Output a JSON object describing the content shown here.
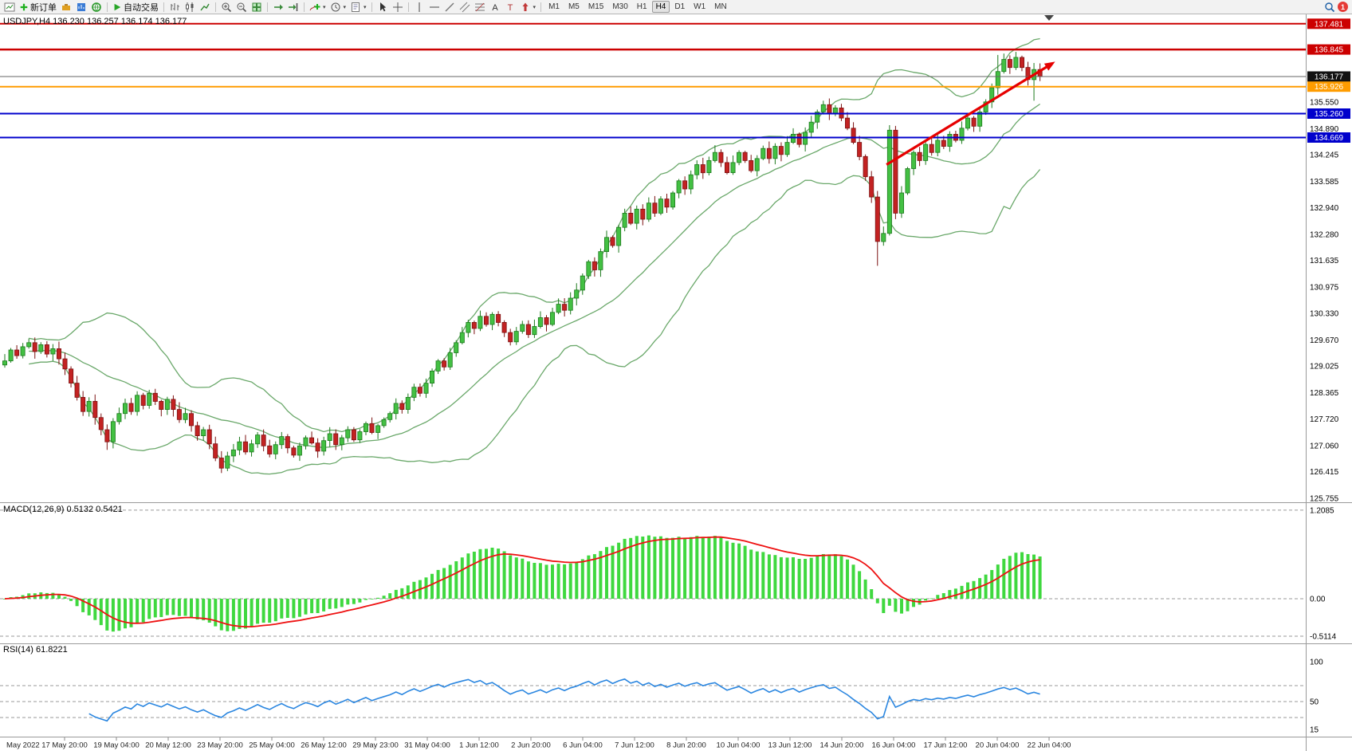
{
  "toolbar": {
    "new_order_label": "新订单",
    "autotrading_label": "自动交易",
    "timeframes": [
      "M1",
      "M5",
      "M15",
      "M30",
      "H1",
      "H4",
      "D1",
      "W1",
      "MN"
    ],
    "active_timeframe": "H4",
    "notification_count": "1"
  },
  "chart_data": {
    "type": "candlestick",
    "symbol": "USDJPY",
    "period": "H4",
    "symbol_header": "USDJPY,H4 136.230 136.257 136.174 136.177",
    "quote": {
      "open": "136.230",
      "high": "136.257",
      "low": "136.174",
      "close": "136.177"
    },
    "price_axis_labels": [
      "135.550",
      "134.890",
      "134.245",
      "133.585",
      "132.940",
      "132.280",
      "131.635",
      "130.975",
      "130.330",
      "129.670",
      "129.025",
      "128.365",
      "127.720",
      "127.060",
      "126.415",
      "125.755"
    ],
    "time_axis_labels": [
      "May 2022",
      "17 May 20:00",
      "19 May 04:00",
      "20 May 12:00",
      "23 May 20:00",
      "25 May 04:00",
      "26 May 12:00",
      "29 May 23:00",
      "31 May 04:00",
      "1 Jun 12:00",
      "2 Jun 20:00",
      "6 Jun 04:00",
      "7 Jun 12:00",
      "8 Jun 20:00",
      "10 Jun 04:00",
      "13 Jun 12:00",
      "14 Jun 20:00",
      "16 Jun 04:00",
      "17 Jun 12:00",
      "20 Jun 04:00",
      "22 Jun 04:00"
    ],
    "candles": {
      "first_open": 129.05,
      "closes": [
        129.15,
        129.42,
        129.28,
        129.5,
        129.6,
        129.38,
        129.55,
        129.32,
        129.45,
        129.2,
        128.95,
        128.6,
        128.25,
        127.9,
        128.15,
        127.75,
        127.45,
        127.15,
        127.65,
        127.85,
        128.1,
        127.9,
        128.3,
        128.05,
        128.35,
        128.15,
        127.95,
        128.2,
        127.95,
        127.7,
        127.85,
        127.55,
        127.3,
        127.45,
        127.1,
        126.75,
        126.5,
        126.8,
        126.95,
        127.15,
        126.9,
        127.1,
        127.32,
        127.05,
        126.85,
        127.08,
        127.28,
        127.0,
        126.82,
        127.05,
        127.25,
        127.12,
        126.92,
        127.18,
        127.35,
        127.08,
        127.25,
        127.45,
        127.2,
        127.4,
        127.6,
        127.38,
        127.55,
        127.7,
        127.85,
        128.1,
        127.95,
        128.25,
        128.5,
        128.35,
        128.6,
        128.9,
        129.15,
        129.0,
        129.35,
        129.6,
        129.85,
        130.1,
        129.95,
        130.25,
        130.05,
        130.3,
        130.1,
        129.85,
        129.62,
        129.88,
        130.05,
        129.8,
        130.0,
        130.22,
        130.05,
        130.35,
        130.55,
        130.4,
        130.7,
        130.9,
        131.25,
        131.6,
        131.4,
        131.85,
        132.2,
        132.0,
        132.45,
        132.8,
        132.55,
        132.9,
        132.65,
        133.05,
        132.8,
        133.15,
        132.95,
        133.3,
        133.6,
        133.4,
        133.75,
        134.0,
        133.8,
        134.1,
        134.3,
        134.05,
        133.8,
        134.05,
        134.3,
        134.1,
        133.85,
        134.15,
        134.4,
        134.15,
        134.45,
        134.25,
        134.55,
        134.75,
        134.5,
        134.8,
        135.05,
        135.3,
        135.48,
        135.25,
        135.4,
        135.15,
        134.9,
        134.55,
        134.2,
        133.7,
        133.2,
        132.1,
        132.3,
        134.85,
        132.8,
        133.3,
        133.9,
        134.3,
        134.1,
        134.5,
        134.3,
        134.6,
        134.45,
        134.75,
        134.6,
        134.9,
        135.15,
        134.95,
        135.3,
        135.55,
        135.9,
        136.3,
        136.6,
        136.4,
        136.65,
        136.4,
        136.1,
        136.35,
        136.18
      ],
      "wick_overrides": {
        "17": {
          "low": 126.95
        },
        "36": {
          "low": 126.38
        },
        "136": {
          "high": 135.58
        },
        "145": {
          "low": 131.5,
          "high": 133.35
        },
        "165": {
          "high": 136.71
        },
        "167": {
          "high": 136.7
        },
        "171": {
          "low": 135.58
        }
      }
    },
    "bollinger": {
      "period": 20,
      "deviation": 2
    },
    "horizontal_lines": [
      {
        "price": 137.481,
        "label": "137.481",
        "line_color": "#cc0000",
        "tag_color": "#cc0000",
        "width": 2
      },
      {
        "price": 136.845,
        "label": "136.845",
        "line_color": "#cc0000",
        "tag_color": "#cc0000",
        "width": 2.5
      },
      {
        "price": 136.177,
        "label": "136.177",
        "line_color": "#666666",
        "tag_color": "#111111",
        "width": 1,
        "current": true
      },
      {
        "price": 135.926,
        "label": "135.926",
        "line_color": "#ff9c00",
        "tag_color": "#ff9c00",
        "width": 2
      },
      {
        "price": 135.26,
        "label": "135.260",
        "line_color": "#0000cc",
        "tag_color": "#0000cc",
        "width": 2
      },
      {
        "price": 134.669,
        "label": "134.669",
        "line_color": "#0000cc",
        "tag_color": "#0000cc",
        "width": 2
      }
    ],
    "trend_arrow": {
      "from_index": 146.5,
      "from_price": 134.0,
      "to_index": 173.5,
      "to_price": 136.45,
      "color": "#e60000"
    },
    "indicators": {
      "macd": {
        "label": "MACD(12,26,9) 0.5132 0.5421",
        "fast": 12,
        "slow": 26,
        "signal": 9,
        "scale_labels": [
          {
            "text": "1.2085",
            "value": 1.2085
          },
          {
            "text": "0.00",
            "value": 0
          },
          {
            "text": "-0.5114",
            "value": -0.5114
          }
        ],
        "histogram_color": "#3fd83f",
        "signal_color": "#ee1111"
      },
      "rsi": {
        "label": "RSI(14) 61.8221",
        "period": 14,
        "scale_labels": [
          {
            "text": "100",
            "value": 100
          },
          {
            "text": "50",
            "value": 50
          },
          {
            "text": "15",
            "value": 15
          }
        ],
        "levels": [
          70,
          50,
          30
        ],
        "line_color": "#2a86e0"
      }
    },
    "style": {
      "up_fill": "#43c043",
      "up_stroke": "#1d7a1d",
      "down_fill": "#c32222",
      "down_stroke": "#7c1212",
      "band_color": "#6aa86a",
      "background": "#ffffff"
    }
  }
}
